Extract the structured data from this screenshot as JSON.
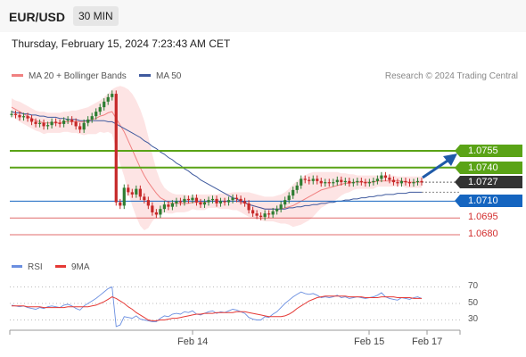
{
  "header": {
    "pair": "EUR/USD",
    "timeframe": "30 MIN",
    "datetime": "Thursday, February 15, 2024 7:23:43 AM CET",
    "credit": "Research © 2024 Trading Central"
  },
  "legend": {
    "ma20": "MA 20 + Bollinger Bands",
    "ma50": "MA 50",
    "rsi": "RSI",
    "ma9": "9MA"
  },
  "colors": {
    "bollinger_fill": "#fde4e4",
    "ma20": "#f08080",
    "ma50": "#3f5a9e",
    "resistance": "#5aa316",
    "support_blue": "#1565c0",
    "support_red": "#d32f2f",
    "rsi": "#6b8fe0",
    "ma9": "#e53935",
    "candle_up": "#2e7d32",
    "candle_down": "#c62828",
    "current": "#333333"
  },
  "levels": [
    {
      "value": 1.0755,
      "label": "1.0755",
      "style": "green-tag"
    },
    {
      "value": 1.074,
      "label": "1.0740",
      "style": "green-tag"
    },
    {
      "value": 1.0727,
      "label": "1.0727",
      "style": "dark-tag"
    },
    {
      "value": 1.071,
      "label": "1.0710",
      "style": "blue-tag"
    },
    {
      "value": 1.0695,
      "label": "1.0695",
      "style": "red-text"
    },
    {
      "value": 1.068,
      "label": "1.0680",
      "style": "red-text"
    }
  ],
  "rsi_ticks": [
    "70",
    "50",
    "30"
  ],
  "x_axis": [
    "Feb 14",
    "Feb 15",
    "Feb 17"
  ],
  "chart_data": {
    "type": "candlestick",
    "price_range": [
      1.0665,
      1.082
    ],
    "levels_resistance": [
      1.0755,
      1.074
    ],
    "current_price": 1.0727,
    "levels_support": [
      1.071,
      1.0695,
      1.068
    ],
    "close": [
      1.0788,
      1.0787,
      1.0785,
      1.0786,
      1.0784,
      1.0781,
      1.0779,
      1.078,
      1.0777,
      1.0778,
      1.0781,
      1.078,
      1.0779,
      1.0782,
      1.0783,
      1.0781,
      1.0777,
      1.0774,
      1.078,
      1.0783,
      1.0786,
      1.079,
      1.0794,
      1.0799,
      1.0803,
      1.0806,
      1.0709,
      1.0706,
      1.0722,
      1.0718,
      1.0716,
      1.0721,
      1.0714,
      1.0711,
      1.0706,
      1.07,
      1.0698,
      1.0703,
      1.0707,
      1.0705,
      1.0708,
      1.071,
      1.0709,
      1.0712,
      1.0711,
      1.0713,
      1.0709,
      1.0707,
      1.0709,
      1.0711,
      1.0712,
      1.0708,
      1.071,
      1.0709,
      1.0711,
      1.0713,
      1.0712,
      1.071,
      1.0708,
      1.0702,
      1.0699,
      1.0697,
      1.0696,
      1.0699,
      1.0698,
      1.0701,
      1.0703,
      1.0707,
      1.0711,
      1.0715,
      1.072,
      1.0724,
      1.073,
      1.0729,
      1.0728,
      1.073,
      1.0728,
      1.0726,
      1.0727,
      1.0726,
      1.0727,
      1.0729,
      1.0727,
      1.0728,
      1.0726,
      1.0727,
      1.0728,
      1.0727,
      1.0726,
      1.0727,
      1.0728,
      1.073,
      1.0733,
      1.0731,
      1.0729,
      1.0727,
      1.0726,
      1.0728,
      1.0727,
      1.0726,
      1.0727,
      1.0728,
      1.0727
    ],
    "ma20": [
      1.0794,
      1.0792,
      1.079,
      1.0788,
      1.0786,
      1.0784,
      1.0782,
      1.0781,
      1.078,
      1.078,
      1.078,
      1.078,
      1.078,
      1.0781,
      1.0781,
      1.0781,
      1.0781,
      1.0781,
      1.0781,
      1.0782,
      1.0783,
      1.0784,
      1.0786,
      1.0787,
      1.0789,
      1.079,
      1.0784,
      1.0778,
      1.0772,
      1.0764,
      1.0756,
      1.0748,
      1.074,
      1.0733,
      1.0727,
      1.0722,
      1.0717,
      1.0713,
      1.0711,
      1.0709,
      1.0708,
      1.0708,
      1.0708,
      1.0708,
      1.0708,
      1.0709,
      1.0709,
      1.0709,
      1.0709,
      1.071,
      1.071,
      1.071,
      1.071,
      1.071,
      1.071,
      1.071,
      1.071,
      1.0709,
      1.0708,
      1.0707,
      1.0706,
      1.0705,
      1.0704,
      1.0703,
      1.0703,
      1.0703,
      1.0703,
      1.0703,
      1.0704,
      1.0705,
      1.0706,
      1.0708,
      1.071,
      1.0712,
      1.0714,
      1.0716,
      1.0718,
      1.072,
      1.0721,
      1.0722,
      1.0723,
      1.0724,
      1.0725,
      1.0726,
      1.0726,
      1.0727,
      1.0727,
      1.0727,
      1.0727,
      1.0727,
      1.0727,
      1.0728,
      1.0728,
      1.0728,
      1.0728,
      1.0728,
      1.0728,
      1.0728,
      1.0727,
      1.0727,
      1.0727,
      1.0727,
      1.0727
    ],
    "bb_upper": [
      1.0802,
      1.08,
      1.0799,
      1.0797,
      1.0795,
      1.0793,
      1.0791,
      1.079,
      1.079,
      1.0789,
      1.0789,
      1.0789,
      1.0789,
      1.079,
      1.079,
      1.0791,
      1.0791,
      1.0792,
      1.0793,
      1.0794,
      1.0796,
      1.0798,
      1.08,
      1.0803,
      1.0806,
      1.081,
      1.0812,
      1.0813,
      1.0812,
      1.081,
      1.0806,
      1.08,
      1.0792,
      1.0782,
      1.0768,
      1.0752,
      1.0738,
      1.0728,
      1.0722,
      1.0719,
      1.0717,
      1.0716,
      1.0716,
      1.0716,
      1.0715,
      1.0715,
      1.0716,
      1.0716,
      1.0716,
      1.0716,
      1.0716,
      1.0716,
      1.0717,
      1.0717,
      1.0717,
      1.0718,
      1.0718,
      1.0718,
      1.0718,
      1.0718,
      1.0717,
      1.0716,
      1.0715,
      1.0714,
      1.0714,
      1.0714,
      1.0715,
      1.0716,
      1.0718,
      1.0721,
      1.0725,
      1.0728,
      1.0731,
      1.0733,
      1.0735,
      1.0736,
      1.0736,
      1.0736,
      1.0736,
      1.0736,
      1.0736,
      1.0736,
      1.0735,
      1.0735,
      1.0734,
      1.0734,
      1.0733,
      1.0733,
      1.0733,
      1.0733,
      1.0733,
      1.0733,
      1.0733,
      1.0733,
      1.0733,
      1.0733,
      1.0732,
      1.0732,
      1.0732,
      1.0732,
      1.0732,
      1.0732,
      1.0732
    ],
    "bb_lower": [
      1.0786,
      1.0784,
      1.0781,
      1.0779,
      1.0777,
      1.0775,
      1.0773,
      1.0772,
      1.077,
      1.0771,
      1.0771,
      1.0771,
      1.0771,
      1.0772,
      1.0772,
      1.0771,
      1.0771,
      1.077,
      1.0769,
      1.077,
      1.077,
      1.077,
      1.0772,
      1.0771,
      1.0772,
      1.077,
      1.0756,
      1.0743,
      1.0732,
      1.0718,
      1.0706,
      1.0696,
      1.0688,
      1.0684,
      1.0686,
      1.0692,
      1.0696,
      1.0698,
      1.07,
      1.0699,
      1.0699,
      1.07,
      1.07,
      1.07,
      1.0701,
      1.0703,
      1.0702,
      1.0702,
      1.0702,
      1.0704,
      1.0704,
      1.0704,
      1.0703,
      1.0703,
      1.0703,
      1.0702,
      1.0702,
      1.07,
      1.0698,
      1.0696,
      1.0695,
      1.0694,
      1.0693,
      1.0692,
      1.0692,
      1.0692,
      1.0691,
      1.069,
      1.069,
      1.0689,
      1.0687,
      1.0688,
      1.0689,
      1.0691,
      1.0693,
      1.0696,
      1.07,
      1.0704,
      1.0706,
      1.0708,
      1.071,
      1.0712,
      1.0715,
      1.0717,
      1.0718,
      1.072,
      1.0721,
      1.0721,
      1.0721,
      1.0721,
      1.0721,
      1.0723,
      1.0723,
      1.0723,
      1.0723,
      1.0723,
      1.0724,
      1.0724,
      1.0722,
      1.0722,
      1.0722,
      1.0722,
      1.0722
    ],
    "ma50": [
      1.079,
      1.0789,
      1.0789,
      1.0788,
      1.0788,
      1.0787,
      1.0787,
      1.0786,
      1.0786,
      1.0785,
      1.0785,
      1.0785,
      1.0784,
      1.0784,
      1.0783,
      1.0783,
      1.0783,
      1.0782,
      1.0782,
      1.0782,
      1.0782,
      1.0782,
      1.0782,
      1.0782,
      1.0781,
      1.0781,
      1.0779,
      1.0777,
      1.0775,
      1.0773,
      1.0771,
      1.0769,
      1.0767,
      1.0764,
      1.0762,
      1.0759,
      1.0757,
      1.0754,
      1.0752,
      1.0749,
      1.0747,
      1.0744,
      1.0742,
      1.0739,
      1.0737,
      1.0734,
      1.0732,
      1.0729,
      1.0727,
      1.0725,
      1.0723,
      1.0721,
      1.0719,
      1.0717,
      1.0715,
      1.0713,
      1.0712,
      1.071,
      1.0709,
      1.0707,
      1.0706,
      1.0705,
      1.0704,
      1.0703,
      1.0703,
      1.0703,
      1.0703,
      1.0703,
      1.0703,
      1.0704,
      1.0704,
      1.0705,
      1.0705,
      1.0706,
      1.0706,
      1.0707,
      1.0707,
      1.0708,
      1.0708,
      1.0709,
      1.0709,
      1.071,
      1.071,
      1.0711,
      1.0711,
      1.0712,
      1.0712,
      1.0713,
      1.0713,
      1.0714,
      1.0714,
      1.0715,
      1.0715,
      1.0716,
      1.0716,
      1.0716,
      1.0717,
      1.0717,
      1.0717,
      1.0718,
      1.0718,
      1.0718,
      1.0718
    ],
    "rsi_range": [
      20,
      80
    ],
    "rsi": [
      48,
      47,
      46,
      47,
      45,
      44,
      43,
      45,
      44,
      46,
      47,
      46,
      45,
      48,
      49,
      47,
      44,
      42,
      47,
      50,
      53,
      56,
      60,
      64,
      68,
      70,
      22,
      24,
      34,
      33,
      32,
      35,
      31,
      30,
      29,
      28,
      28,
      32,
      35,
      34,
      37,
      38,
      37,
      40,
      39,
      41,
      37,
      36,
      38,
      40,
      41,
      38,
      40,
      39,
      41,
      43,
      42,
      40,
      38,
      33,
      31,
      30,
      30,
      34,
      33,
      37,
      40,
      45,
      50,
      54,
      58,
      61,
      64,
      62,
      61,
      62,
      60,
      57,
      58,
      57,
      58,
      60,
      57,
      58,
      56,
      57,
      58,
      57,
      56,
      57,
      58,
      60,
      63,
      58,
      56,
      55,
      54,
      57,
      56,
      55,
      57,
      58,
      56
    ],
    "ma9": [
      47,
      47,
      47,
      47,
      46,
      46,
      46,
      46,
      45,
      45,
      45,
      45,
      45,
      45,
      46,
      46,
      46,
      46,
      46,
      46,
      47,
      48,
      50,
      52,
      55,
      58,
      56,
      53,
      50,
      46,
      43,
      39,
      36,
      33,
      30,
      29,
      29,
      30,
      30,
      31,
      32,
      32,
      33,
      34,
      35,
      36,
      37,
      37,
      38,
      38,
      38,
      39,
      39,
      39,
      39,
      39,
      40,
      40,
      40,
      39,
      38,
      37,
      36,
      35,
      34,
      34,
      34,
      34,
      35,
      37,
      40,
      44,
      47,
      50,
      53,
      55,
      57,
      58,
      59,
      59,
      59,
      59,
      59,
      59,
      58,
      58,
      58,
      58,
      57,
      57,
      57,
      57,
      58,
      58,
      58,
      58,
      57,
      57,
      57,
      57,
      56,
      56,
      56
    ]
  }
}
